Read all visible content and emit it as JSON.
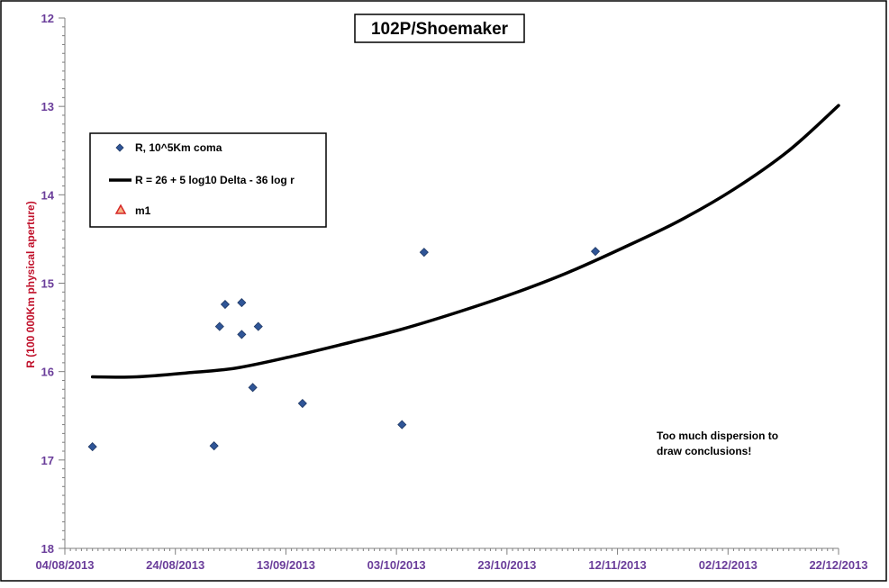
{
  "chart_data": {
    "type": "scatter",
    "title": "102P/Shoemaker",
    "ylabel": "R (100 000Km physical aperture)",
    "xlabel": "",
    "y_axis": {
      "ylim": [
        12,
        18
      ],
      "inverted": true,
      "ticks": [
        "12",
        "13",
        "14",
        "15",
        "16",
        "17",
        "18"
      ]
    },
    "x_axis": {
      "xlim": [
        "2013-08-04",
        "2013-12-22"
      ],
      "ticks": [
        {
          "date": "2013-08-04",
          "label": "04/08/2013"
        },
        {
          "date": "2013-08-24",
          "label": "24/08/2013"
        },
        {
          "date": "2013-09-13",
          "label": "13/09/2013"
        },
        {
          "date": "2013-10-03",
          "label": "03/10/2013"
        },
        {
          "date": "2013-10-23",
          "label": "23/10/2013"
        },
        {
          "date": "2013-11-12",
          "label": "12/11/2013"
        },
        {
          "date": "2013-12-02",
          "label": "02/12/2013"
        },
        {
          "date": "2013-12-22",
          "label": "22/12/2013"
        }
      ]
    },
    "grid": false,
    "legend_position": "top-left",
    "series": [
      {
        "name": "R, 10^5Km coma",
        "kind": "scatter",
        "marker": "diamond",
        "color": "#2f5597",
        "points": [
          {
            "x": "2013-08-09",
            "y": 16.85
          },
          {
            "x": "2013-08-31",
            "y": 16.84
          },
          {
            "x": "2013-09-01",
            "y": 15.49
          },
          {
            "x": "2013-09-02",
            "y": 15.24
          },
          {
            "x": "2013-09-05",
            "y": 15.22
          },
          {
            "x": "2013-09-05",
            "y": 15.58
          },
          {
            "x": "2013-09-07",
            "y": 16.18
          },
          {
            "x": "2013-09-08",
            "y": 15.49
          },
          {
            "x": "2013-09-16",
            "y": 16.36
          },
          {
            "x": "2013-10-04",
            "y": 16.6
          },
          {
            "x": "2013-10-08",
            "y": 14.65
          },
          {
            "x": "2013-11-08",
            "y": 14.64
          }
        ]
      },
      {
        "name": "R = 26 + 5 log10 Delta - 36  log r",
        "kind": "line",
        "color": "#000000",
        "points": [
          {
            "x": "2013-08-09",
            "y": 16.06
          },
          {
            "x": "2013-08-17",
            "y": 16.06
          },
          {
            "x": "2013-08-27",
            "y": 16.01
          },
          {
            "x": "2013-09-04",
            "y": 15.96
          },
          {
            "x": "2013-09-14",
            "y": 15.83
          },
          {
            "x": "2013-09-24",
            "y": 15.68
          },
          {
            "x": "2013-10-04",
            "y": 15.52
          },
          {
            "x": "2013-10-14",
            "y": 15.33
          },
          {
            "x": "2013-10-24",
            "y": 15.12
          },
          {
            "x": "2013-11-03",
            "y": 14.88
          },
          {
            "x": "2013-11-13",
            "y": 14.6
          },
          {
            "x": "2013-11-23",
            "y": 14.3
          },
          {
            "x": "2013-12-03",
            "y": 13.94
          },
          {
            "x": "2013-12-13",
            "y": 13.5
          },
          {
            "x": "2013-12-22",
            "y": 12.99
          }
        ]
      },
      {
        "name": "m1",
        "kind": "scatter",
        "marker": "triangle",
        "color": "#d62728",
        "points": []
      }
    ],
    "annotations": [
      "Too much dispersion to",
      "draw conclusions!"
    ]
  }
}
